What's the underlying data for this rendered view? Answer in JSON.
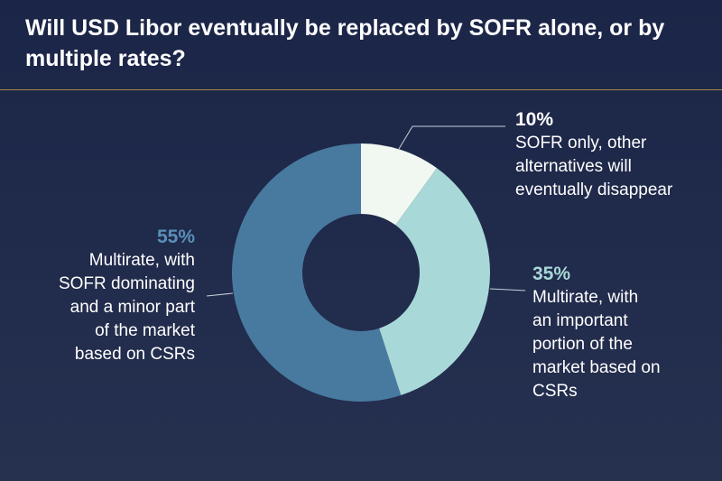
{
  "chart_data": {
    "type": "pie",
    "title": "Will USD Libor eventually be replaced by SOFR alone, or by multiple rates?",
    "donut": true,
    "slices": [
      {
        "label": "SOFR only, other alternatives will eventually disappear",
        "value": 10,
        "value_text": "10%",
        "color": "#f1f8f1"
      },
      {
        "label": "Multirate, with an important portion of the market based on CSRs",
        "value": 35,
        "value_text": "35%",
        "color": "#a8d8d8"
      },
      {
        "label": "Multirate, with SOFR dominating and a minor part of the market based on CSRs",
        "value": 55,
        "value_text": "55%",
        "color": "#487aa0"
      }
    ],
    "line_lines": {
      "s0": "SOFR only, other\nalternatives will\neventually disappear",
      "s1": "Multirate, with\nan important\nportion of the\nmarket based on\nCSRs",
      "s2": "Multirate, with\nSOFR dominating\nand a minor part\nof the market\nbased on CSRs"
    }
  },
  "colors": {
    "background": "#1f2a4a",
    "divider": "#a8893f",
    "leader": "#c8d2dc"
  }
}
